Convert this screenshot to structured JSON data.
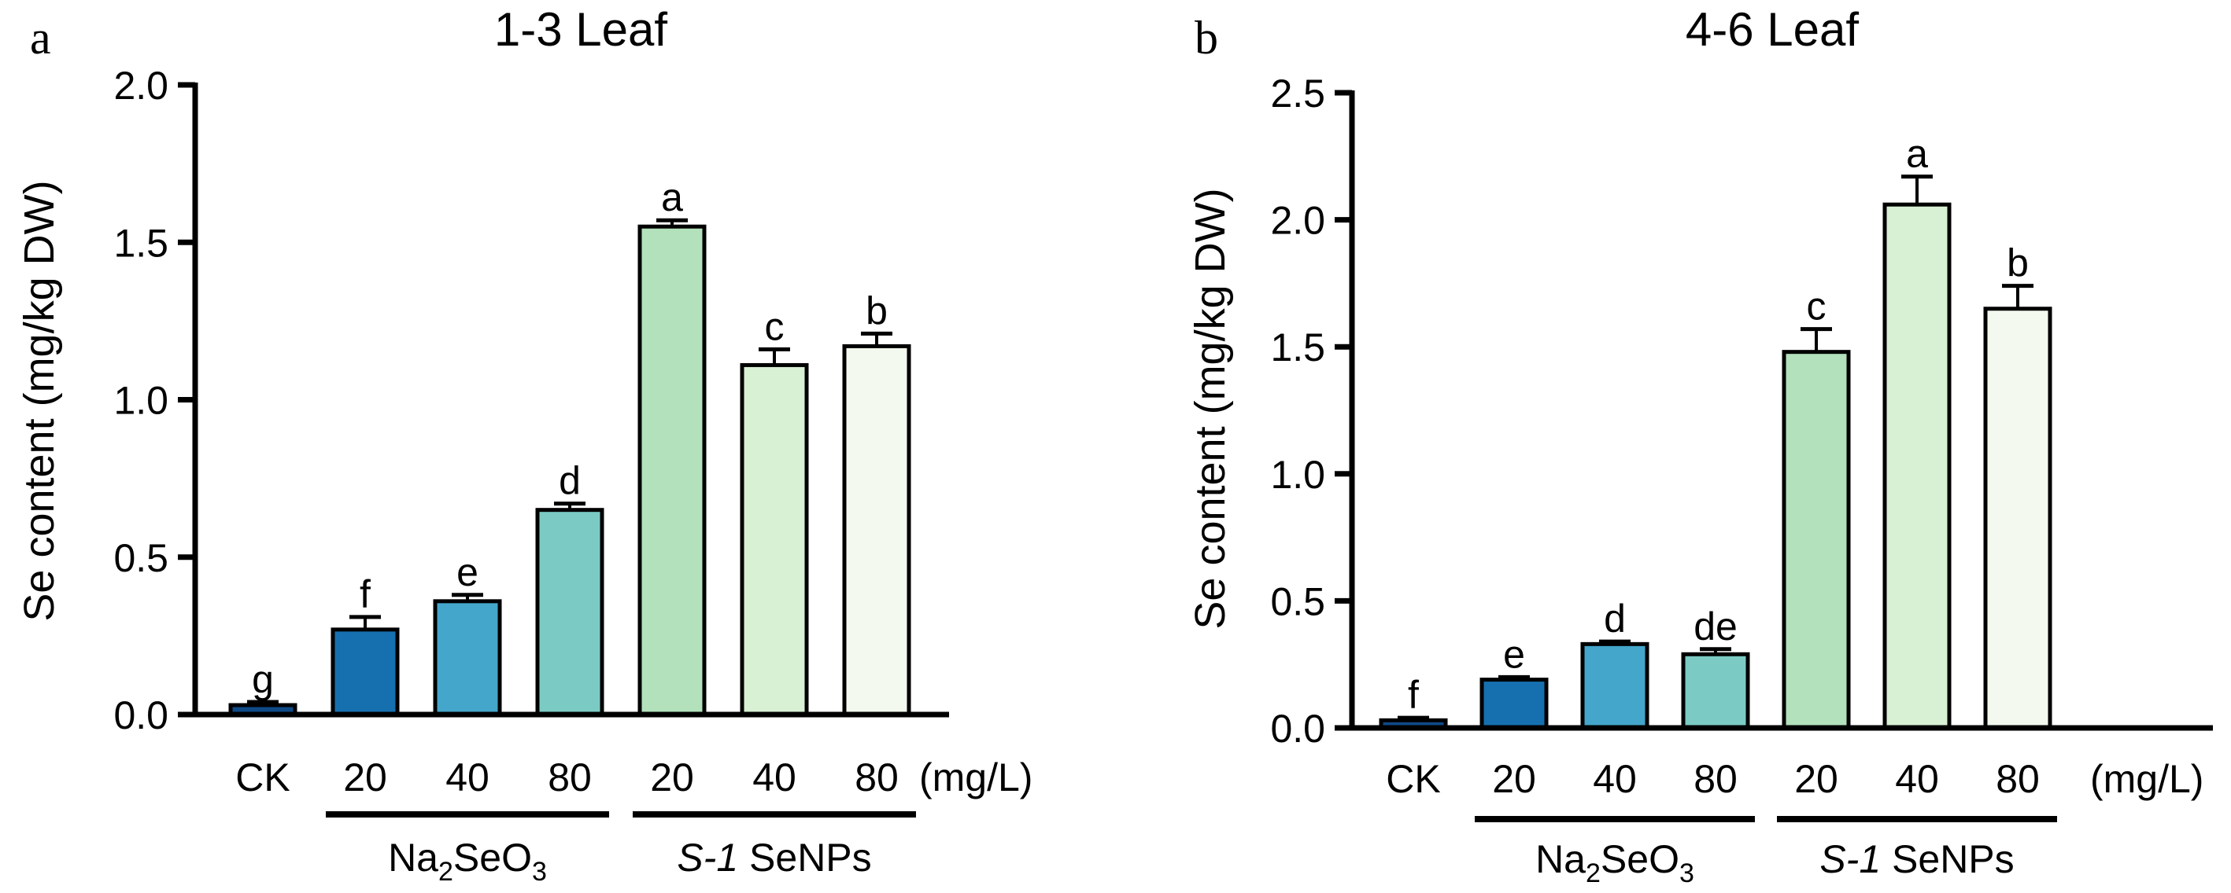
{
  "chart_data": [
    {
      "type": "bar",
      "panel_letter": "a",
      "title": "1-3 Leaf",
      "ylabel": "Se content (mg/kg DW)",
      "xlabel": "",
      "ylim": [
        0,
        2.0
      ],
      "yticks": [
        "0.0",
        "0.5",
        "1.0",
        "1.5",
        "2.0"
      ],
      "ytick_values": [
        0,
        0.5,
        1.0,
        1.5,
        2.0
      ],
      "categories": [
        "CK",
        "20",
        "40",
        "80",
        "20",
        "40",
        "80"
      ],
      "unit_label": "(mg/L)",
      "groups": [
        {
          "label_parts": [
            "Na",
            "2",
            "SeO",
            "3"
          ],
          "label": "Na2SeO3",
          "from": 1,
          "to": 3
        },
        {
          "label_italic": "S-1",
          "label_rest": " SeNPs",
          "label": "S-1 SeNPs",
          "from": 4,
          "to": 6
        }
      ],
      "values": [
        0.03,
        0.27,
        0.36,
        0.65,
        1.55,
        1.11,
        1.17
      ],
      "errors": [
        0.01,
        0.04,
        0.02,
        0.02,
        0.02,
        0.05,
        0.04
      ],
      "significance": [
        "g",
        "f",
        "e",
        "d",
        "a",
        "c",
        "b"
      ],
      "colors": [
        "#0f4a87",
        "#1670b0",
        "#43a6ca",
        "#7bcbc4",
        "#b2e1bb",
        "#d8f0d3",
        "#f3f9ee"
      ]
    },
    {
      "type": "bar",
      "panel_letter": "b",
      "title": "4-6 Leaf",
      "ylabel": "Se content (mg/kg DW)",
      "xlabel": "",
      "ylim": [
        0,
        2.5
      ],
      "yticks": [
        "0.0",
        "0.5",
        "1.0",
        "1.5",
        "2.0",
        "2.5"
      ],
      "ytick_values": [
        0,
        0.5,
        1.0,
        1.5,
        2.0,
        2.5
      ],
      "categories": [
        "CK",
        "20",
        "40",
        "80",
        "20",
        "40",
        "80"
      ],
      "unit_label": "(mg/L)",
      "groups": [
        {
          "label_parts": [
            "Na",
            "2",
            "SeO",
            "3"
          ],
          "label": "Na2SeO3",
          "from": 1,
          "to": 3
        },
        {
          "label_italic": "S-1",
          "label_rest": " SeNPs",
          "label": "S-1 SeNPs",
          "from": 4,
          "to": 6
        }
      ],
      "values": [
        0.03,
        0.19,
        0.33,
        0.29,
        1.48,
        2.06,
        1.65
      ],
      "errors": [
        0.01,
        0.01,
        0.01,
        0.02,
        0.09,
        0.11,
        0.09
      ],
      "significance": [
        "f",
        "e",
        "d",
        "de",
        "c",
        "a",
        "b"
      ],
      "colors": [
        "#0f4a87",
        "#1670b0",
        "#43a6ca",
        "#7bcbc4",
        "#b2e1bb",
        "#d8f0d3",
        "#f3f9ee"
      ]
    }
  ]
}
